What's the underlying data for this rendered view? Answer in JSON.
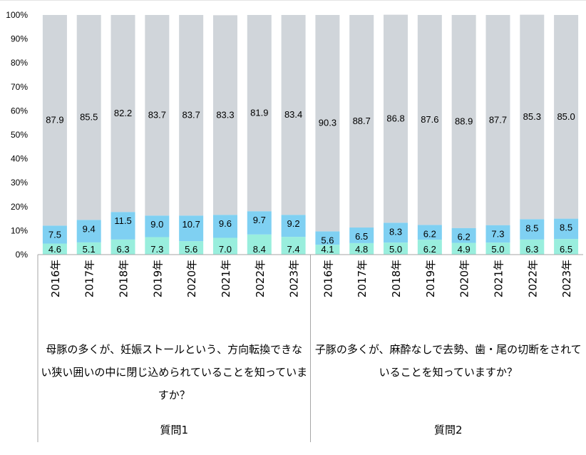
{
  "chart_data": {
    "type": "bar",
    "stacked": true,
    "percent_axis": true,
    "ylim": [
      0,
      100
    ],
    "yticks": [
      "0%",
      "10%",
      "20%",
      "30%",
      "40%",
      "50%",
      "60%",
      "70%",
      "80%",
      "90%",
      "100%"
    ],
    "grid": false,
    "categories": [
      "2016年",
      "2017年",
      "2018年",
      "2019年",
      "2020年",
      "2021年",
      "2022年",
      "2023年",
      "2016年",
      "2017年",
      "2018年",
      "2019年",
      "2020年",
      "2021年",
      "2022年",
      "2023年"
    ],
    "groups": [
      {
        "name": "質問1",
        "question": "母豚の多くが、妊娠ストールという、方向転換できない狭い囲いの中に閉じ込められていることを知っていますか？",
        "start": 0,
        "count": 8
      },
      {
        "name": "質問2",
        "question": "子豚の多くが、麻酔なしで去勢、歯・尾の切断をされていることを知っていますか？",
        "start": 8,
        "count": 8
      }
    ],
    "series": [
      {
        "key": "bottom",
        "color": "#99eedd",
        "values": [
          4.6,
          5.1,
          6.3,
          7.3,
          5.6,
          7.0,
          8.4,
          7.4,
          4.1,
          4.8,
          5.0,
          6.2,
          4.9,
          5.0,
          6.3,
          6.5
        ]
      },
      {
        "key": "middle",
        "color": "#7fd0f2",
        "values": [
          7.5,
          9.4,
          11.5,
          9.0,
          10.7,
          9.6,
          9.7,
          9.2,
          5.6,
          6.5,
          8.3,
          6.2,
          6.2,
          7.3,
          8.5,
          8.5
        ]
      },
      {
        "key": "top",
        "color": "#d0d5da",
        "values": [
          87.9,
          85.5,
          82.2,
          83.7,
          83.7,
          83.3,
          81.9,
          83.4,
          90.3,
          88.7,
          86.8,
          87.6,
          88.9,
          87.7,
          85.3,
          85.0
        ]
      }
    ]
  }
}
